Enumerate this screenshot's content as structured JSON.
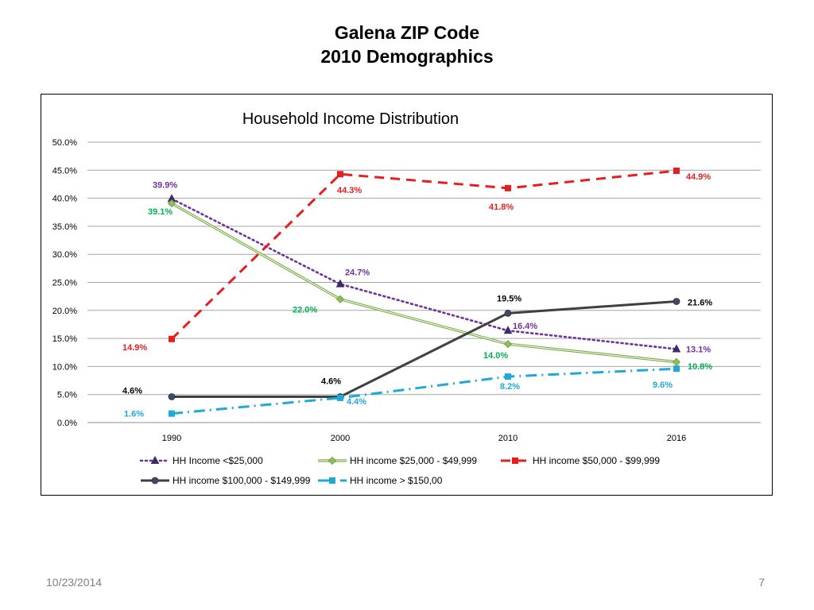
{
  "slide": {
    "title_line1": "Galena ZIP Code",
    "title_line2": "2010 Demographics",
    "footer_date": "10/23/2014",
    "page_number": "7"
  },
  "chart_data": {
    "type": "line",
    "title": "Household Income Distribution",
    "xlabel": "",
    "ylabel": "",
    "categories": [
      "1990",
      "2000",
      "2010",
      "2016"
    ],
    "ylim": [
      0,
      50
    ],
    "yticks": [
      "0.0%",
      "5.0%",
      "10.0%",
      "15.0%",
      "20.0%",
      "25.0%",
      "30.0%",
      "35.0%",
      "40.0%",
      "45.0%",
      "50.0%"
    ],
    "grid": true,
    "legend_position": "bottom",
    "series": [
      {
        "name": "HH Income <$25,000",
        "values": [
          39.9,
          24.7,
          16.4,
          13.1
        ],
        "labels": [
          "39.9%",
          "24.7%",
          "16.4%",
          "13.1%"
        ],
        "color": "#7030a0",
        "label_color": "#7030a0",
        "style": "dotted",
        "marker": "triangle"
      },
      {
        "name": "HH income $25,000 - $49,999",
        "values": [
          39.1,
          22.0,
          14.0,
          10.8
        ],
        "labels": [
          "39.1%",
          "22.0%",
          "14.0%",
          "10.8%"
        ],
        "color": "#92d050",
        "label_color": "#00b050",
        "style": "double",
        "marker": "diamond"
      },
      {
        "name": "HH income $50,000 - $99,999",
        "values": [
          14.9,
          44.3,
          41.8,
          44.9
        ],
        "labels": [
          "14.9%",
          "44.3%",
          "41.8%",
          "44.9%"
        ],
        "color": "#e51f1f",
        "label_color": "#e51f1f",
        "style": "dashed",
        "marker": "square"
      },
      {
        "name": "HH income $100,000 - $149,999",
        "values": [
          4.6,
          4.6,
          19.5,
          21.6
        ],
        "labels": [
          "4.6%",
          "4.6%",
          "19.5%",
          "21.6%"
        ],
        "color": "#404040",
        "label_color": "#000000",
        "style": "solid",
        "marker": "circle"
      },
      {
        "name": "HH income > $150,00",
        "values": [
          1.6,
          4.4,
          8.2,
          9.6
        ],
        "labels": [
          "1.6%",
          "4.4%",
          "8.2%",
          "9.6%"
        ],
        "color": "#1fa9d8",
        "label_color": "#1fa9d8",
        "style": "dashdot",
        "marker": "square"
      }
    ]
  }
}
